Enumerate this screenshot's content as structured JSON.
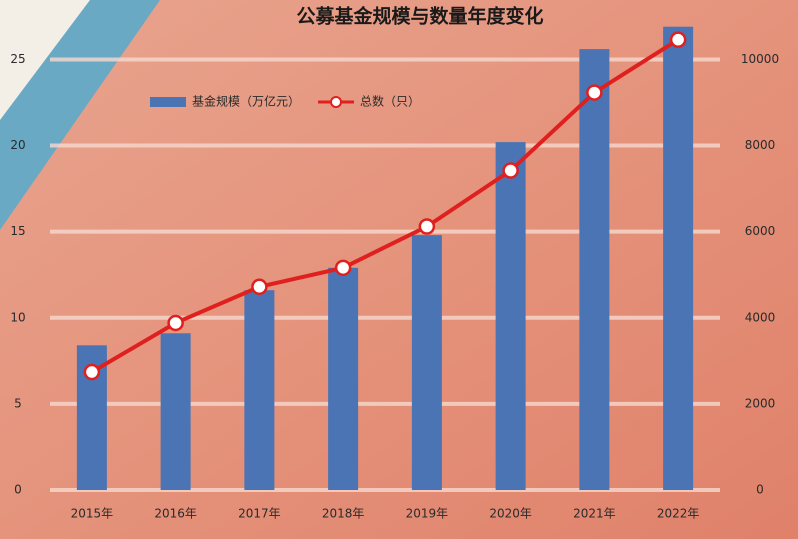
{
  "chart_data": {
    "type": "bar_line",
    "title": "公募基金规模与数量年度变化",
    "categories": [
      "2015年",
      "2016年",
      "2017年",
      "2018年",
      "2019年",
      "2020年",
      "2021年",
      "2022年"
    ],
    "series": [
      {
        "name": "基金规模（万亿元）",
        "color": "#4a74b4",
        "type": "bar",
        "values": [
          8.4,
          9.1,
          11.6,
          12.9,
          14.8,
          20.2,
          25.6,
          26.9
        ]
      },
      {
        "name": "总数（只）",
        "color": "#e0201e",
        "type": "line",
        "axis": "y2",
        "values": [
          2740,
          3880,
          4720,
          5160,
          6120,
          7420,
          9230,
          10460
        ]
      }
    ],
    "ylim": [
      0,
      27
    ],
    "yticks": [
      0,
      5,
      10,
      15,
      20,
      25
    ],
    "y2lim": [
      0,
      10800
    ],
    "y2ticks": [
      0,
      2000,
      4000,
      6000,
      8000,
      10000
    ],
    "grid": true,
    "legend": "top-left"
  }
}
